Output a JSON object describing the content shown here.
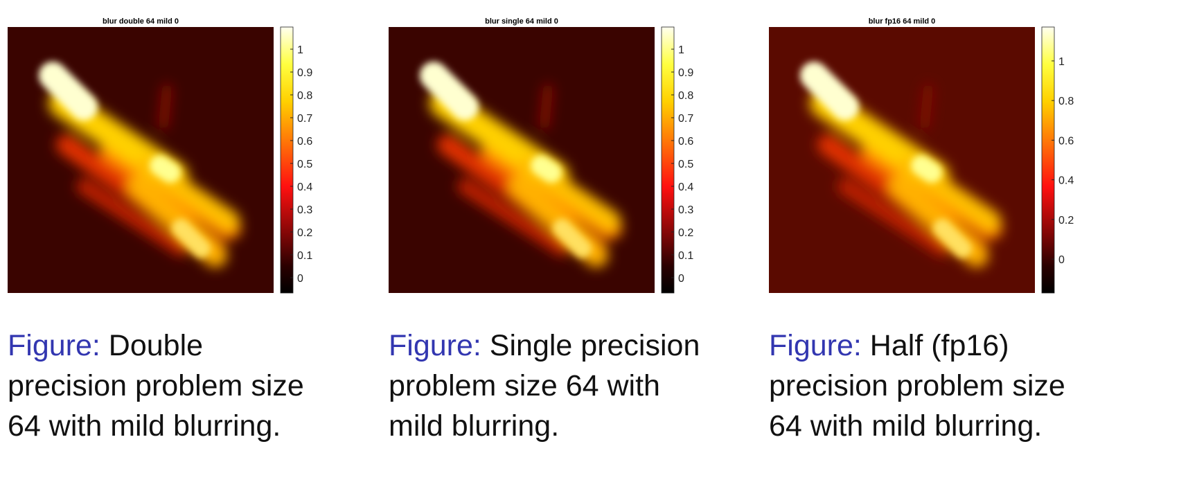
{
  "figures": [
    {
      "title": "blur double 64 mild 0",
      "colorbar": {
        "lim": [
          -0.067,
          1.097
        ],
        "ticks": [
          0,
          0.1,
          0.2,
          0.3,
          0.4,
          0.5,
          0.6,
          0.7,
          0.8,
          0.9,
          1
        ]
      },
      "caption": {
        "label": "Figure:",
        "text": "Double precision problem size 64 with mild blurring."
      }
    },
    {
      "title": "blur single 64 mild 0",
      "colorbar": {
        "lim": [
          -0.067,
          1.097
        ],
        "ticks": [
          0,
          0.1,
          0.2,
          0.3,
          0.4,
          0.5,
          0.6,
          0.7,
          0.8,
          0.9,
          1
        ]
      },
      "caption": {
        "label": "Figure:",
        "text": "Single precision problem size 64 with mild blurring."
      }
    },
    {
      "title": "blur fp16 64 mild 0",
      "colorbar": {
        "lim": [
          -0.171,
          1.171
        ],
        "ticks": [
          0,
          0.2,
          0.4,
          0.6,
          0.8,
          1
        ]
      },
      "caption": {
        "label": "Figure:",
        "text": "Half (fp16) precision problem size 64 with mild blurring."
      }
    }
  ]
}
